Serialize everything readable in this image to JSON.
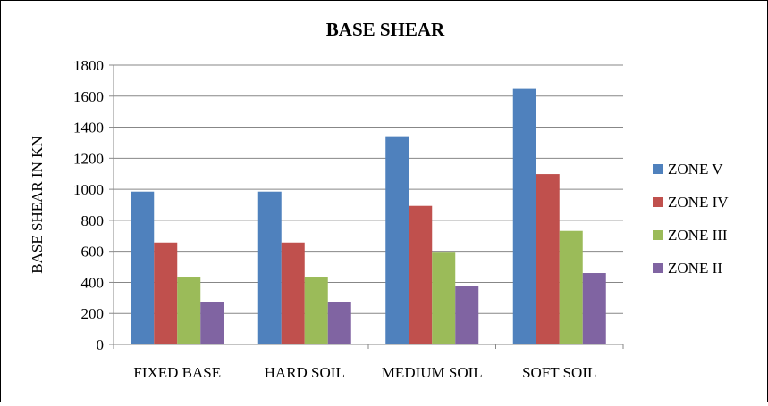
{
  "chart_data": {
    "type": "bar",
    "title": "BASE SHEAR",
    "xlabel": "",
    "ylabel": "BASE SHEAR IN KN",
    "categories": [
      "FIXED BASE",
      "HARD SOIL",
      "MEDIUM SOIL",
      "SOFT SOIL"
    ],
    "series": [
      {
        "name": "ZONE V",
        "color": "#4F81BD",
        "values": [
          985,
          985,
          1342,
          1647
        ]
      },
      {
        "name": "ZONE IV",
        "color": "#C0504D",
        "values": [
          657,
          657,
          893,
          1098
        ]
      },
      {
        "name": "ZONE III",
        "color": "#9BBB59",
        "values": [
          437,
          437,
          597,
          732
        ]
      },
      {
        "name": "ZONE II",
        "color": "#8064A2",
        "values": [
          275,
          275,
          375,
          460
        ]
      }
    ],
    "ylim": [
      0,
      1800
    ],
    "yticks": [
      0,
      200,
      400,
      600,
      800,
      1000,
      1200,
      1400,
      1600,
      1800
    ],
    "grid": true,
    "legend": "right"
  }
}
